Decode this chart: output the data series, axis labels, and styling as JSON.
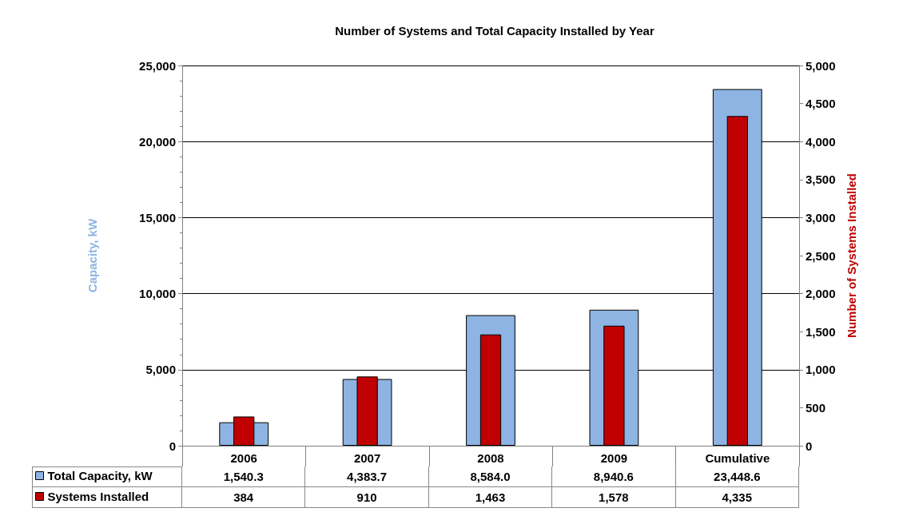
{
  "chart_data": {
    "type": "bar",
    "title": "Number of Systems and Total Capacity Installed by Year",
    "categories": [
      "2006",
      "2007",
      "2008",
      "2009",
      "Cumulative"
    ],
    "series": [
      {
        "name": "Total Capacity, kW",
        "color": "#8db4e2",
        "values": [
          1540.3,
          4383.7,
          8584.0,
          8940.6,
          23448.6
        ],
        "value_labels": [
          "1,540.3",
          "4,383.7",
          "8,584.0",
          "8,940.6",
          "23,448.6"
        ]
      },
      {
        "name": "Systems Installed",
        "color": "#c00000",
        "axis": "y2",
        "values": [
          384,
          910,
          1463,
          1578,
          4335
        ],
        "value_labels": [
          "384",
          "910",
          "1,463",
          "1,578",
          "4,335"
        ]
      }
    ],
    "ylabel": "Capacity, kW",
    "y2label": "Number of Systems Installed",
    "ylim": [
      0,
      25000
    ],
    "yticks": [
      0,
      {
        "value": 5000,
        "label": "5,000"
      },
      {
        "value": 10000,
        "label": "10,000"
      },
      {
        "value": 15000,
        "label": "15,000"
      },
      {
        "value": 20000,
        "label": "20,000"
      },
      {
        "value": 25000,
        "label": "25,000"
      }
    ],
    "y2lim": [
      0,
      5000
    ],
    "y2ticks": [
      0,
      500,
      {
        "value": 1000,
        "label": "1,000"
      },
      {
        "value": 1500,
        "label": "1,500"
      },
      {
        "value": 2000,
        "label": "2,000"
      },
      {
        "value": 2500,
        "label": "2,500"
      },
      {
        "value": 3000,
        "label": "3,000"
      },
      {
        "value": 3500,
        "label": "3,500"
      },
      {
        "value": 4000,
        "label": "4,000"
      },
      {
        "value": 4500,
        "label": "4,500"
      },
      {
        "value": 5000,
        "label": "5,000"
      }
    ],
    "grid": "y",
    "legend": "bottom left"
  }
}
